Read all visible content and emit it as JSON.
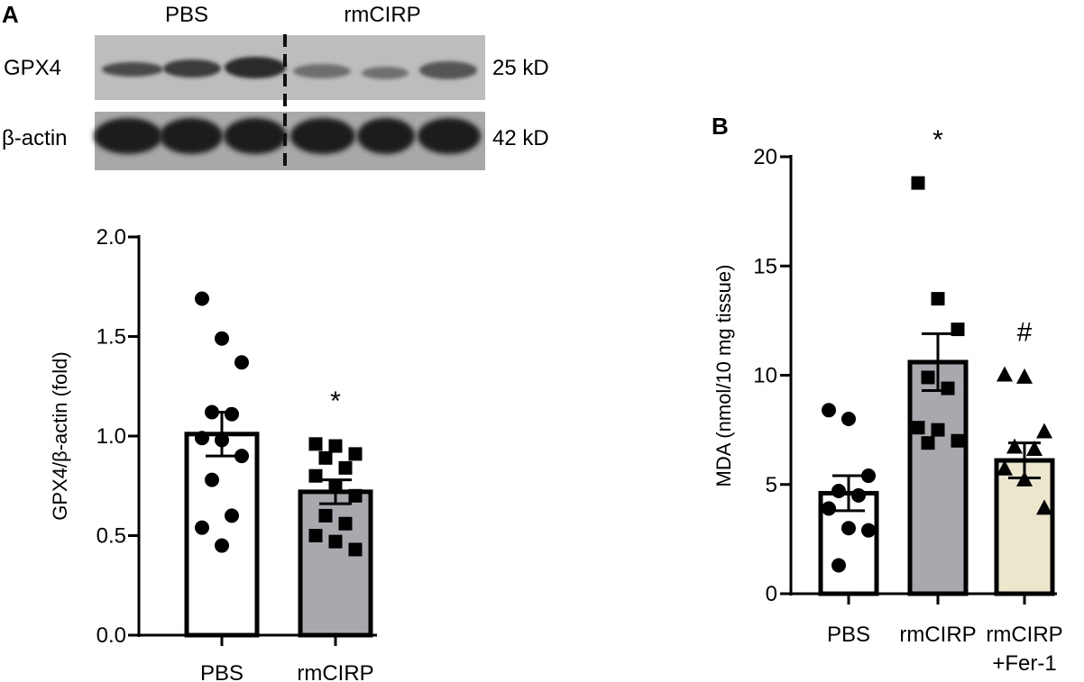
{
  "panel_a": {
    "letter": "A",
    "blot": {
      "lane_groups": [
        "PBS",
        "rmCIRP"
      ],
      "rows": [
        {
          "name": "GPX4",
          "size": "25 kD"
        },
        {
          "name": "β-actin",
          "size": "42 kD"
        }
      ]
    }
  },
  "panel_b": {
    "letter": "B"
  },
  "chart_data": [
    {
      "type": "bar",
      "title": "",
      "categories": [
        "PBS",
        "rmCIRP"
      ],
      "values": [
        1.01,
        0.72
      ],
      "sem": [
        0.11,
        0.06
      ],
      "bar_colors": [
        "#ffffff",
        "#a7a9ae"
      ],
      "markers": [
        "circle",
        "square"
      ],
      "points": [
        [
          1.69,
          1.49,
          1.37,
          1.12,
          1.11,
          0.99,
          0.98,
          0.9,
          0.78,
          0.6,
          0.54,
          0.45
        ],
        [
          0.96,
          0.95,
          0.91,
          0.89,
          0.84,
          0.8,
          0.75,
          0.7,
          0.6,
          0.56,
          0.5,
          0.47,
          0.43
        ]
      ],
      "significance": [
        "",
        "*"
      ],
      "xlabel": "",
      "ylabel": "GPX4/β-actin (fold)",
      "ylim": [
        0,
        2.0
      ],
      "yticks": [
        "0.0",
        "0.5",
        "1.0",
        "1.5",
        "2.0"
      ]
    },
    {
      "type": "bar",
      "title": "",
      "categories": [
        "PBS",
        "rmCIRP",
        "rmCIRP\n+Fer-1"
      ],
      "values": [
        4.6,
        10.6,
        6.1
      ],
      "sem": [
        0.8,
        1.3,
        0.8
      ],
      "bar_colors": [
        "#ffffff",
        "#a7a9ae",
        "#ece7cc"
      ],
      "markers": [
        "circle",
        "square",
        "triangle"
      ],
      "points": [
        [
          8.4,
          8.0,
          5.4,
          4.7,
          4.5,
          3.9,
          3.0,
          2.9,
          1.3
        ],
        [
          18.8,
          13.5,
          12.1,
          9.9,
          9.4,
          7.6,
          7.5,
          7.0,
          6.9
        ],
        [
          10.0,
          9.9,
          7.4,
          6.7,
          6.6,
          5.7,
          5.2,
          3.9
        ]
      ],
      "significance": [
        "",
        "*",
        "#"
      ],
      "xlabel": "",
      "ylabel": "MDA (nmol/10 mg tissue)",
      "ylim": [
        0,
        20
      ],
      "yticks": [
        "0",
        "5",
        "10",
        "15",
        "20"
      ]
    }
  ]
}
